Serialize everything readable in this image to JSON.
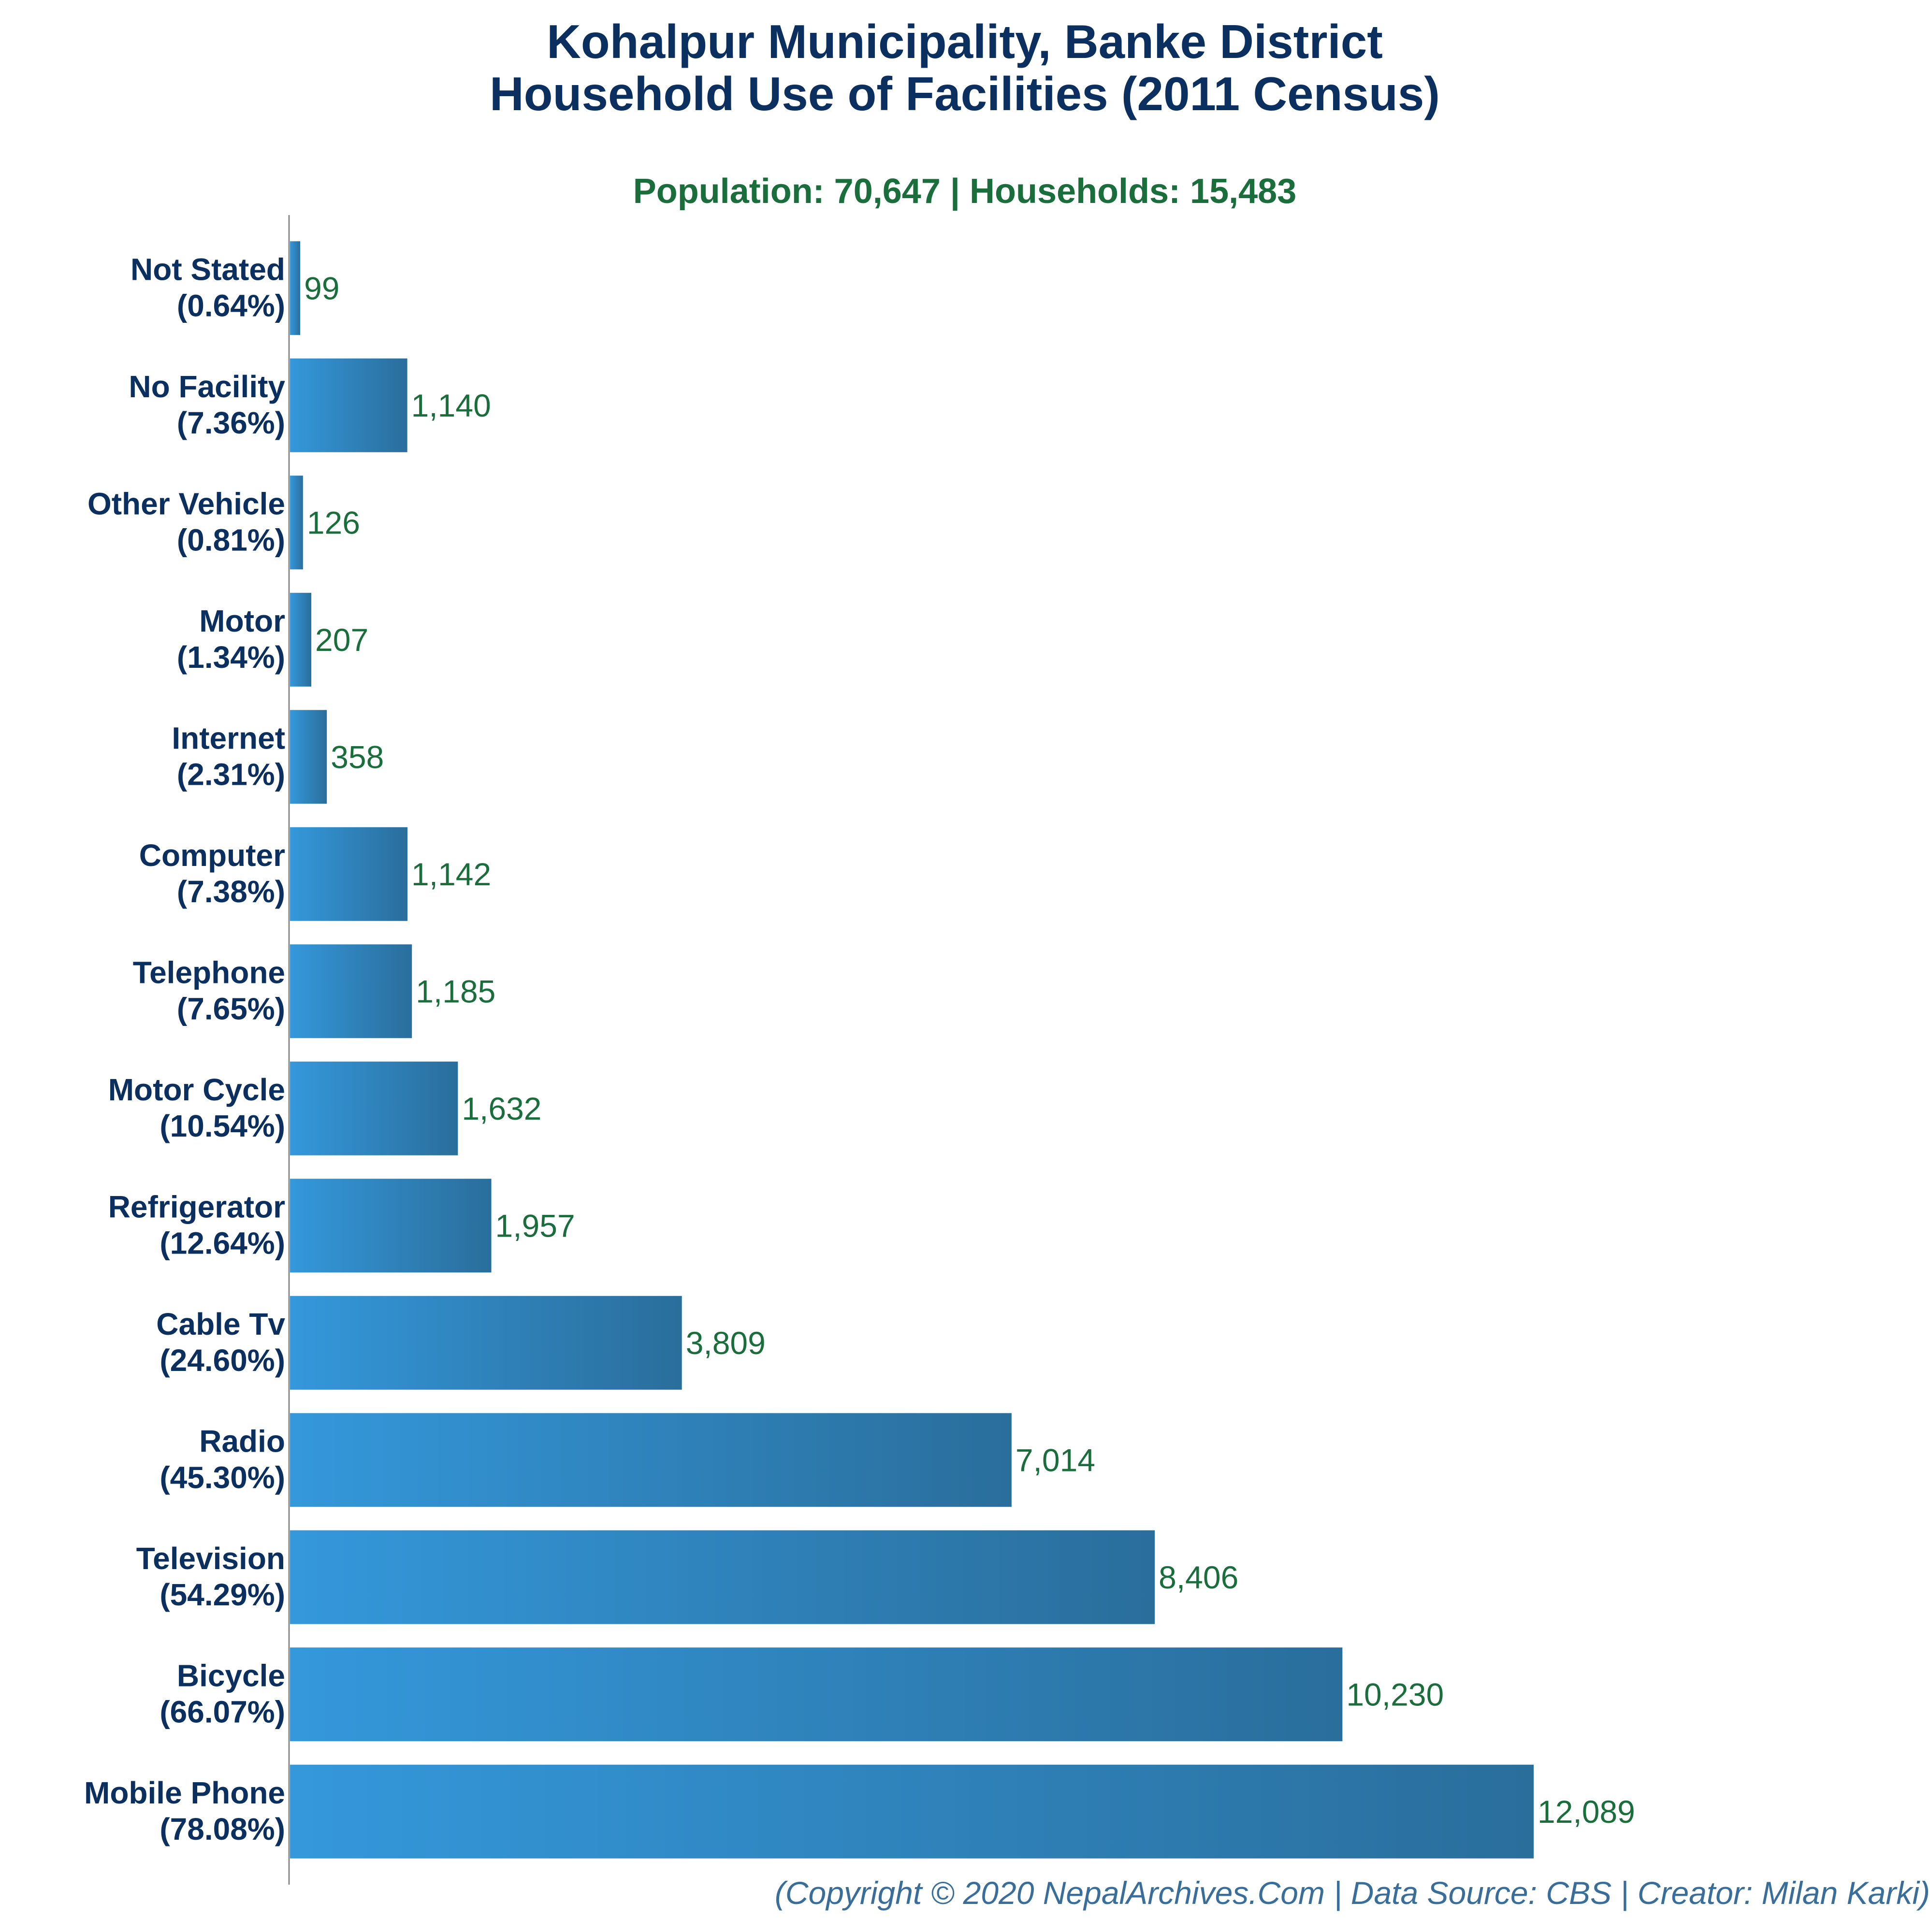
{
  "colors": {
    "title": "#0b3060",
    "subtitle": "#1a6e3c",
    "value_label": "#1a6e3c",
    "category_label": "#0b3060",
    "footer": "#3a6e9a",
    "bar_gradient_start": "#3498db",
    "bar_gradient_end": "#2a6e9c",
    "axis": "#888888"
  },
  "chart_data": {
    "type": "bar",
    "orientation": "horizontal",
    "title": [
      "Kohalpur Municipality, Banke District",
      "Household Use of Facilities (2011 Census)"
    ],
    "subtitle": "Population: 70,647 | Households: 15,483",
    "footer": "(Copyright © 2020 NepalArchives.Com | Data Source: CBS | Creator: Milan Karki)",
    "categories": [
      "Not Stated",
      "No Facility",
      "Other Vehicle",
      "Motor",
      "Internet",
      "Computer",
      "Telephone",
      "Motor Cycle",
      "Refrigerator",
      "Cable Tv",
      "Radio",
      "Television",
      "Bicycle",
      "Mobile Phone"
    ],
    "percent_labels": [
      "(0.64%)",
      "(7.36%)",
      "(0.81%)",
      "(1.34%)",
      "(2.31%)",
      "(7.38%)",
      "(7.65%)",
      "(10.54%)",
      "(12.64%)",
      "(24.60%)",
      "(45.30%)",
      "(54.29%)",
      "(66.07%)",
      "(78.08%)"
    ],
    "values": [
      99,
      1140,
      126,
      207,
      358,
      1142,
      1185,
      1632,
      1957,
      3809,
      7014,
      8406,
      10230,
      12089
    ],
    "value_labels": [
      "99",
      "1,140",
      "126",
      "207",
      "358",
      "1,142",
      "1,185",
      "1,632",
      "1,957",
      "3,809",
      "7,014",
      "8,406",
      "10,230",
      "12,089"
    ],
    "xlim": [
      0,
      13200
    ],
    "grid": false,
    "legend": "none"
  }
}
